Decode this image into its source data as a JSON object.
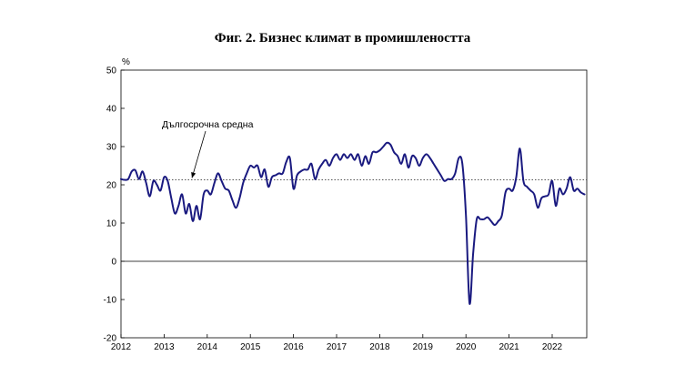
{
  "chart_data": {
    "type": "line",
    "title": "Фиг. 2. Бизнес климат в промишлеността",
    "ylabel": "%",
    "xlabel": "",
    "ylim": [
      -20,
      50
    ],
    "yticks": [
      "50",
      "40",
      "30",
      "20",
      "10",
      "0",
      "-10",
      "-20"
    ],
    "xlim": [
      "2012-01",
      "2022-10"
    ],
    "xticks": [
      "2012",
      "2013",
      "2014",
      "2015",
      "2016",
      "2017",
      "2018",
      "2019",
      "2020",
      "2021",
      "2022"
    ],
    "grid": false,
    "legend": "none",
    "colors": {
      "series": "#1a1a80",
      "reference": "#555555",
      "axis": "#000000"
    },
    "reference_line": {
      "label": "Дългосрочна средна",
      "value": 21.3
    },
    "series": [
      {
        "x": [
          "2012-01",
          "2012-02",
          "2012-03",
          "2012-04",
          "2012-05",
          "2012-06",
          "2012-07",
          "2012-08",
          "2012-09",
          "2012-10",
          "2012-11",
          "2012-12",
          "2013-01",
          "2013-02",
          "2013-03",
          "2013-04",
          "2013-05",
          "2013-06",
          "2013-07",
          "2013-08",
          "2013-09",
          "2013-10",
          "2013-11",
          "2013-12",
          "2014-01",
          "2014-02",
          "2014-03",
          "2014-04",
          "2014-05",
          "2014-06",
          "2014-07",
          "2014-08",
          "2014-09",
          "2014-10",
          "2014-11",
          "2014-12",
          "2015-01",
          "2015-02",
          "2015-03",
          "2015-04",
          "2015-05",
          "2015-06",
          "2015-07",
          "2015-08",
          "2015-09",
          "2015-10",
          "2015-11",
          "2015-12",
          "2016-01",
          "2016-02",
          "2016-03",
          "2016-04",
          "2016-05",
          "2016-06",
          "2016-07",
          "2016-08",
          "2016-09",
          "2016-10",
          "2016-11",
          "2016-12",
          "2017-01",
          "2017-02",
          "2017-03",
          "2017-04",
          "2017-05",
          "2017-06",
          "2017-07",
          "2017-08",
          "2017-09",
          "2017-10",
          "2017-11",
          "2017-12",
          "2018-01",
          "2018-02",
          "2018-03",
          "2018-04",
          "2018-05",
          "2018-06",
          "2018-07",
          "2018-08",
          "2018-09",
          "2018-10",
          "2018-11",
          "2018-12",
          "2019-01",
          "2019-02",
          "2019-03",
          "2019-04",
          "2019-05",
          "2019-06",
          "2019-07",
          "2019-08",
          "2019-09",
          "2019-10",
          "2019-11",
          "2019-12",
          "2020-01",
          "2020-02",
          "2020-03",
          "2020-04",
          "2020-05",
          "2020-06",
          "2020-07",
          "2020-08",
          "2020-09",
          "2020-10",
          "2020-11",
          "2020-12",
          "2021-01",
          "2021-02",
          "2021-03",
          "2021-04",
          "2021-05",
          "2021-06",
          "2021-07",
          "2021-08",
          "2021-09",
          "2021-10",
          "2021-11",
          "2021-12",
          "2022-01",
          "2022-02",
          "2022-03",
          "2022-04",
          "2022-05",
          "2022-06",
          "2022-07",
          "2022-08",
          "2022-09",
          "2022-10"
        ],
        "values": [
          21.5,
          21.3,
          21.5,
          23.5,
          23.8,
          21.5,
          23.5,
          20.5,
          17.0,
          21.0,
          20.0,
          18.5,
          22.0,
          21.0,
          16.5,
          12.5,
          14.5,
          17.5,
          12.5,
          15.0,
          10.5,
          14.5,
          11.0,
          17.5,
          18.5,
          17.5,
          20.5,
          23.0,
          21.0,
          19.0,
          18.5,
          16.0,
          14.0,
          16.5,
          20.5,
          23.0,
          25.0,
          24.5,
          25.0,
          22.0,
          24.0,
          19.5,
          22.0,
          22.5,
          23.0,
          23.0,
          26.0,
          27.0,
          19.0,
          22.5,
          23.5,
          24.0,
          24.0,
          25.5,
          21.5,
          24.0,
          25.5,
          26.5,
          25.0,
          27.0,
          28.0,
          26.5,
          28.0,
          27.0,
          28.0,
          26.5,
          28.0,
          25.0,
          27.5,
          25.5,
          28.5,
          28.5,
          29.0,
          30.0,
          31.0,
          30.5,
          28.5,
          27.5,
          25.5,
          28.0,
          24.5,
          27.5,
          27.0,
          25.0,
          27.0,
          28.0,
          27.0,
          25.5,
          24.0,
          22.5,
          21.0,
          21.5,
          21.5,
          23.0,
          27.0,
          25.5,
          12.0,
          -11.0,
          2.0,
          11.0,
          11.0,
          11.0,
          11.5,
          10.5,
          9.5,
          10.5,
          12.0,
          18.0,
          19.0,
          18.5,
          22.0,
          29.5,
          21.0,
          19.5,
          18.5,
          17.5,
          14.0,
          16.5,
          17.0,
          17.5,
          21.0,
          14.5,
          19.0,
          17.5,
          19.0,
          22.0,
          18.5,
          19.0,
          18.0,
          17.5
        ]
      }
    ]
  }
}
